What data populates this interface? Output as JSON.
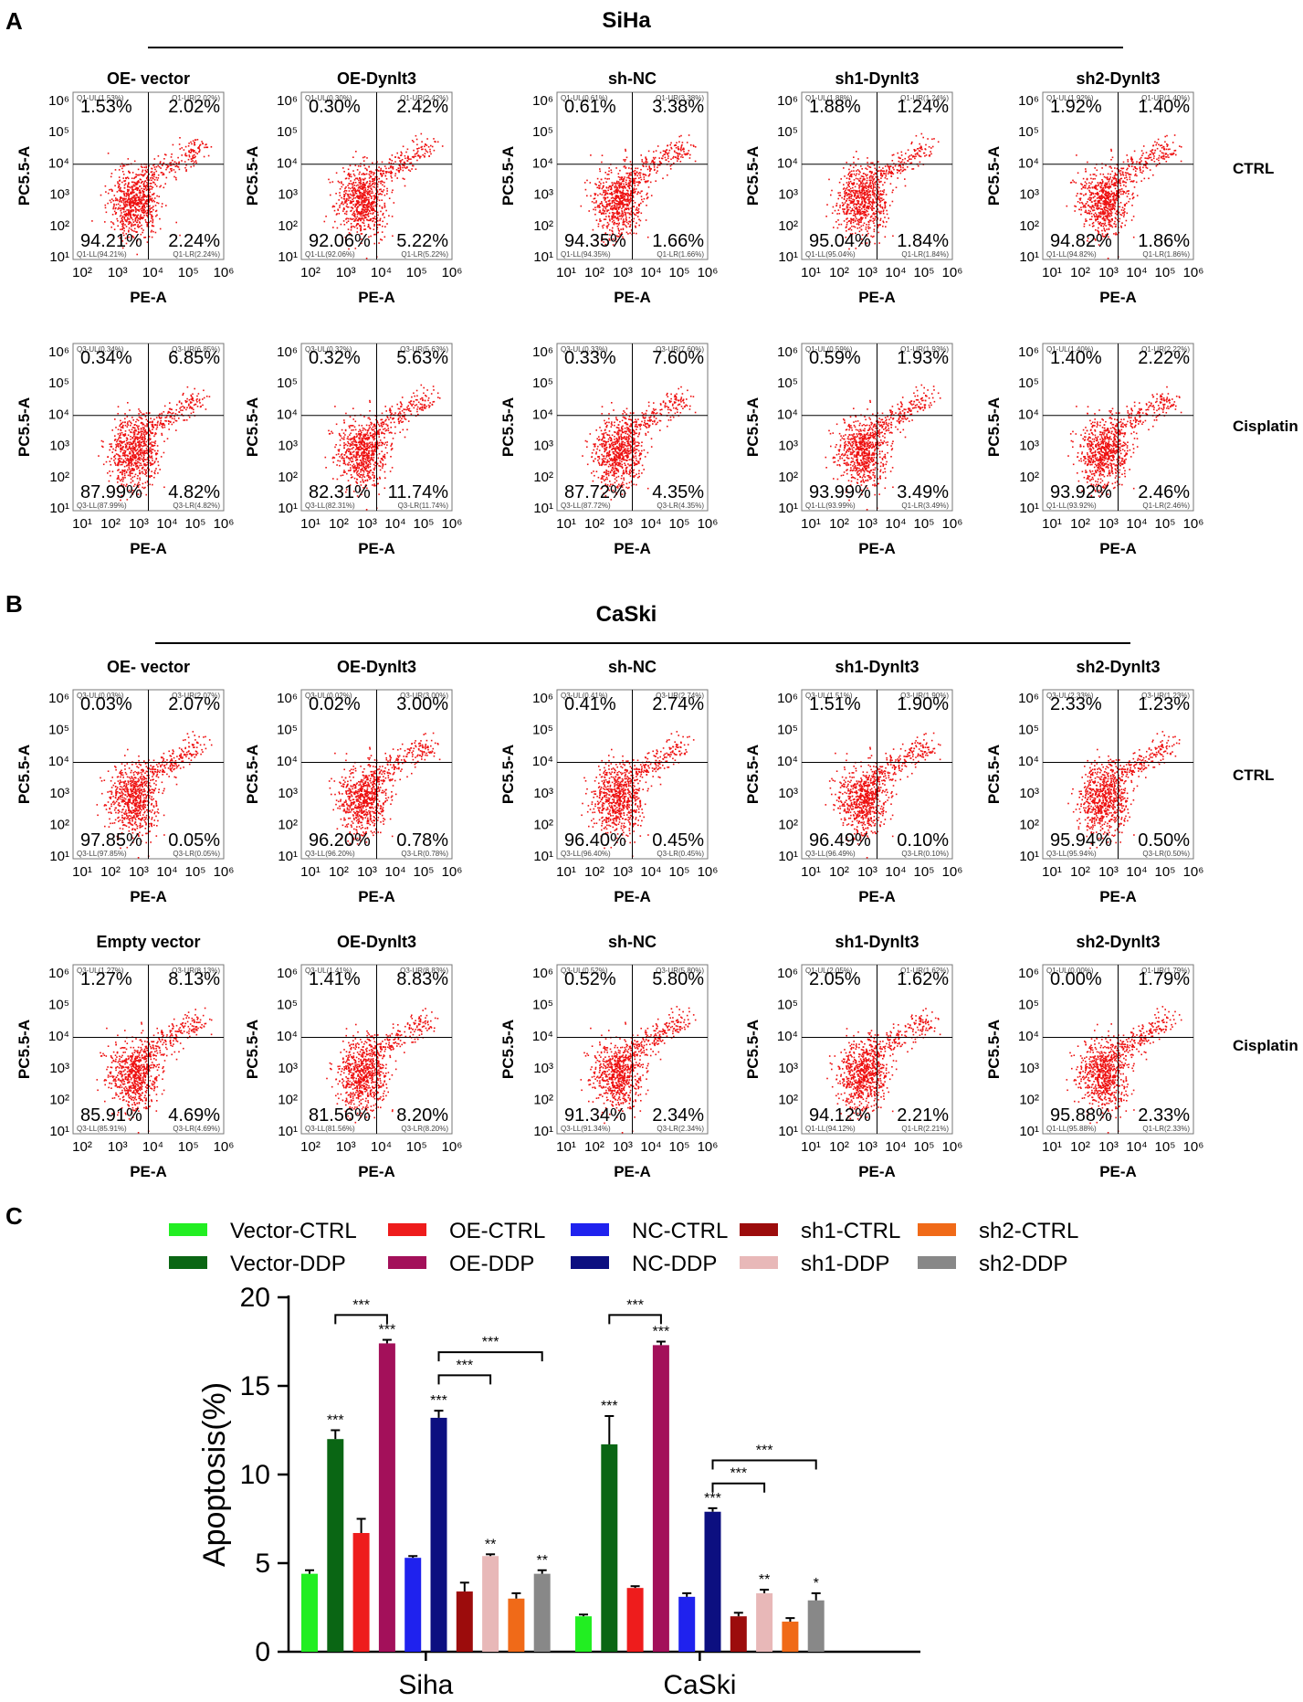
{
  "panel_letters": [
    "A",
    "B",
    "C"
  ],
  "chart_data": [
    {
      "type": "scatter",
      "panel": "A",
      "title": "SiHa",
      "xlabel": "PE-A",
      "ylabel": "PC5.5-A",
      "row_labels": [
        "CTRL",
        "Cisplatin"
      ],
      "columns": [
        "OE- vector",
        "OE-Dynlt3",
        "sh-NC",
        "sh1-Dynlt3",
        "sh2-Dynlt3"
      ],
      "plots": [
        {
          "row": 0,
          "col": 0,
          "title": "OE- vector",
          "UL": "1.53%",
          "UR": "2.02%",
          "LL": "94.21%",
          "LR": "2.24%",
          "gate_ul": "Q1-UL(1.53%)",
          "gate_ur": "Q1-UR(2.02%)",
          "gate_ll": "Q1-LL(94.21%)",
          "gate_lr": "Q1-LR(2.24%)",
          "xticks": [
            "10²",
            "10³",
            "10⁴",
            "10⁵",
            "10⁶"
          ],
          "yticks": [
            "10¹",
            "10²",
            "10³",
            "10⁴",
            "10⁵",
            "10⁶"
          ]
        },
        {
          "row": 0,
          "col": 1,
          "title": "OE-Dynlt3",
          "UL": "0.30%",
          "UR": "2.42%",
          "LL": "92.06%",
          "LR": "5.22%",
          "gate_ul": "Q1-UL(0.30%)",
          "gate_ur": "Q1-UR(2.42%)",
          "gate_ll": "Q1-LL(92.06%)",
          "gate_lr": "Q1-LR(5.22%)",
          "xticks": [
            "10²",
            "10³",
            "10⁴",
            "10⁵",
            "10⁶"
          ],
          "yticks": [
            "10¹",
            "10²",
            "10³",
            "10⁴",
            "10⁵",
            "10⁶"
          ]
        },
        {
          "row": 0,
          "col": 2,
          "title": "sh-NC",
          "UL": "0.61%",
          "UR": "3.38%",
          "LL": "94.35%",
          "LR": "1.66%",
          "gate_ul": "Q1-UL(0.61%)",
          "gate_ur": "Q1-UR(3.38%)",
          "gate_ll": "Q1-LL(94.35%)",
          "gate_lr": "Q1-LR(1.66%)",
          "xticks": [
            "10¹",
            "10²",
            "10³",
            "10⁴",
            "10⁵",
            "10⁶"
          ],
          "yticks": [
            "10¹",
            "10²",
            "10³",
            "10⁴",
            "10⁵",
            "10⁶"
          ]
        },
        {
          "row": 0,
          "col": 3,
          "title": "sh1-Dynlt3",
          "UL": "1.88%",
          "UR": "1.24%",
          "LL": "95.04%",
          "LR": "1.84%",
          "gate_ul": "Q1-UL(1.88%)",
          "gate_ur": "Q1-UR(1.24%)",
          "gate_ll": "Q1-LL(95.04%)",
          "gate_lr": "Q1-LR(1.84%)",
          "xticks": [
            "10¹",
            "10²",
            "10³",
            "10⁴",
            "10⁵",
            "10⁶"
          ],
          "yticks": [
            "10¹",
            "10²",
            "10³",
            "10⁴",
            "10⁵",
            "10⁶"
          ]
        },
        {
          "row": 0,
          "col": 4,
          "title": "sh2-Dynlt3",
          "UL": "1.92%",
          "UR": "1.40%",
          "LL": "94.82%",
          "LR": "1.86%",
          "gate_ul": "Q1-UL(1.92%)",
          "gate_ur": "Q1-UR(1.40%)",
          "gate_ll": "Q1-LL(94.82%)",
          "gate_lr": "Q1-LR(1.86%)",
          "xticks": [
            "10¹",
            "10²",
            "10³",
            "10⁴",
            "10⁵",
            "10⁶"
          ],
          "yticks": [
            "10¹",
            "10²",
            "10³",
            "10⁴",
            "10⁵",
            "10⁶"
          ]
        },
        {
          "row": 1,
          "col": 0,
          "title": "",
          "UL": "0.34%",
          "UR": "6.85%",
          "LL": "87.99%",
          "LR": "4.82%",
          "gate_ul": "Q3-UL(0.34%)",
          "gate_ur": "Q3-UR(6.85%)",
          "gate_ll": "Q3-LL(87.99%)",
          "gate_lr": "Q3-LR(4.82%)",
          "xticks": [
            "10¹",
            "10²",
            "10³",
            "10⁴",
            "10⁵",
            "10⁶"
          ],
          "yticks": [
            "10¹",
            "10²",
            "10³",
            "10⁴",
            "10⁵",
            "10⁶"
          ]
        },
        {
          "row": 1,
          "col": 1,
          "title": "",
          "UL": "0.32%",
          "UR": "5.63%",
          "LL": "82.31%",
          "LR": "11.74%",
          "gate_ul": "Q3-UL(0.32%)",
          "gate_ur": "Q3-UR(5.63%)",
          "gate_ll": "Q3-LL(82.31%)",
          "gate_lr": "Q3-LR(11.74%)",
          "xticks": [
            "10¹",
            "10²",
            "10³",
            "10⁴",
            "10⁵",
            "10⁶"
          ],
          "yticks": [
            "10¹",
            "10²",
            "10³",
            "10⁴",
            "10⁵",
            "10⁶"
          ]
        },
        {
          "row": 1,
          "col": 2,
          "title": "",
          "UL": "0.33%",
          "UR": "7.60%",
          "LL": "87.72%",
          "LR": "4.35%",
          "gate_ul": "Q3-UL(0.33%)",
          "gate_ur": "Q3-UR(7.60%)",
          "gate_ll": "Q3-LL(87.72%)",
          "gate_lr": "Q3-LR(4.35%)",
          "xticks": [
            "10¹",
            "10²",
            "10³",
            "10⁴",
            "10⁵",
            "10⁶"
          ],
          "yticks": [
            "10¹",
            "10²",
            "10³",
            "10⁴",
            "10⁵",
            "10⁶"
          ]
        },
        {
          "row": 1,
          "col": 3,
          "title": "",
          "UL": "0.59%",
          "UR": "1.93%",
          "LL": "93.99%",
          "LR": "3.49%",
          "gate_ul": "Q1-UL(0.59%)",
          "gate_ur": "Q1-UR(1.93%)",
          "gate_ll": "Q1-LL(93.99%)",
          "gate_lr": "Q1-LR(3.49%)",
          "xticks": [
            "10¹",
            "10²",
            "10³",
            "10⁴",
            "10⁵",
            "10⁶"
          ],
          "yticks": [
            "10¹",
            "10²",
            "10³",
            "10⁴",
            "10⁵",
            "10⁶"
          ]
        },
        {
          "row": 1,
          "col": 4,
          "title": "",
          "UL": "1.40%",
          "UR": "2.22%",
          "LL": "93.92%",
          "LR": "2.46%",
          "gate_ul": "Q1-UL(1.40%)",
          "gate_ur": "Q1-UR(2.22%)",
          "gate_ll": "Q1-LL(93.92%)",
          "gate_lr": "Q1-LR(2.46%)",
          "xticks": [
            "10¹",
            "10²",
            "10³",
            "10⁴",
            "10⁵",
            "10⁶"
          ],
          "yticks": [
            "10¹",
            "10²",
            "10³",
            "10⁴",
            "10⁵",
            "10⁶"
          ]
        }
      ]
    },
    {
      "type": "scatter",
      "panel": "B",
      "title": "CaSki",
      "xlabel": "PE-A",
      "ylabel": "PC5.5-A",
      "row_labels": [
        "CTRL",
        "Cisplatin"
      ],
      "columns": [
        "OE- vector",
        "OE-Dynlt3",
        "sh-NC",
        "sh1-Dynlt3",
        "sh2-Dynlt3"
      ],
      "plots": [
        {
          "row": 0,
          "col": 0,
          "title": "OE- vector",
          "UL": "0.03%",
          "UR": "2.07%",
          "LL": "97.85%",
          "LR": "0.05%",
          "gate_ul": "Q3-UL(0.03%)",
          "gate_ur": "Q3-UR(2.07%)",
          "gate_ll": "Q3-LL(97.85%)",
          "gate_lr": "Q3-LR(0.05%)",
          "xticks": [
            "10¹",
            "10²",
            "10³",
            "10⁴",
            "10⁵",
            "10⁶"
          ],
          "yticks": [
            "10¹",
            "10²",
            "10³",
            "10⁴",
            "10⁵",
            "10⁶"
          ]
        },
        {
          "row": 0,
          "col": 1,
          "title": "OE-Dynlt3",
          "UL": "0.02%",
          "UR": "3.00%",
          "LL": "96.20%",
          "LR": "0.78%",
          "gate_ul": "Q3-UL(0.02%)",
          "gate_ur": "Q3-UR(3.00%)",
          "gate_ll": "Q3-LL(96.20%)",
          "gate_lr": "Q3-LR(0.78%)",
          "xticks": [
            "10¹",
            "10²",
            "10³",
            "10⁴",
            "10⁵",
            "10⁶"
          ],
          "yticks": [
            "10¹",
            "10²",
            "10³",
            "10⁴",
            "10⁵",
            "10⁶"
          ]
        },
        {
          "row": 0,
          "col": 2,
          "title": "sh-NC",
          "UL": "0.41%",
          "UR": "2.74%",
          "LL": "96.40%",
          "LR": "0.45%",
          "gate_ul": "Q3-UL(0.41%)",
          "gate_ur": "Q3-UR(2.74%)",
          "gate_ll": "Q3-LL(96.40%)",
          "gate_lr": "Q3-LR(0.45%)",
          "xticks": [
            "10¹",
            "10²",
            "10³",
            "10⁴",
            "10⁵",
            "10⁶"
          ],
          "yticks": [
            "10¹",
            "10²",
            "10³",
            "10⁴",
            "10⁵",
            "10⁶"
          ]
        },
        {
          "row": 0,
          "col": 3,
          "title": "sh1-Dynlt3",
          "UL": "1.51%",
          "UR": "1.90%",
          "LL": "96.49%",
          "LR": "0.10%",
          "gate_ul": "Q3-UL(1.51%)",
          "gate_ur": "Q3-UR(1.90%)",
          "gate_ll": "Q3-LL(96.49%)",
          "gate_lr": "Q3-LR(0.10%)",
          "xticks": [
            "10¹",
            "10²",
            "10³",
            "10⁴",
            "10⁵",
            "10⁶"
          ],
          "yticks": [
            "10¹",
            "10²",
            "10³",
            "10⁴",
            "10⁵",
            "10⁶"
          ]
        },
        {
          "row": 0,
          "col": 4,
          "title": "sh2-Dynlt3",
          "UL": "2.33%",
          "UR": "1.23%",
          "LL": "95.94%",
          "LR": "0.50%",
          "gate_ul": "Q3-UL(2.33%)",
          "gate_ur": "Q3-UR(1.23%)",
          "gate_ll": "Q3-LL(95.94%)",
          "gate_lr": "Q3-LR(0.50%)",
          "xticks": [
            "10¹",
            "10²",
            "10³",
            "10⁴",
            "10⁵",
            "10⁶"
          ],
          "yticks": [
            "10¹",
            "10²",
            "10³",
            "10⁴",
            "10⁵",
            "10⁶"
          ]
        },
        {
          "row": 1,
          "col": 0,
          "title": "Empty vector",
          "UL": "1.27%",
          "UR": "8.13%",
          "LL": "85.91%",
          "LR": "4.69%",
          "gate_ul": "Q3-UL(1.27%)",
          "gate_ur": "Q3-UR(8.13%)",
          "gate_ll": "Q3-LL(85.91%)",
          "gate_lr": "Q3-LR(4.69%)",
          "xticks": [
            "10²",
            "10³",
            "10⁴",
            "10⁵",
            "10⁶"
          ],
          "yticks": [
            "10¹",
            "10²",
            "10³",
            "10⁴",
            "10⁵",
            "10⁶"
          ]
        },
        {
          "row": 1,
          "col": 1,
          "title": "OE-Dynlt3",
          "UL": "1.41%",
          "UR": "8.83%",
          "LL": "81.56%",
          "LR": "8.20%",
          "gate_ul": "Q3-UL(1.41%)",
          "gate_ur": "Q3-UR(8.83%)",
          "gate_ll": "Q3-LL(81.56%)",
          "gate_lr": "Q3-LR(8.20%)",
          "xticks": [
            "10²",
            "10³",
            "10⁴",
            "10⁵",
            "10⁶"
          ],
          "yticks": [
            "10¹",
            "10²",
            "10³",
            "10⁴",
            "10⁵",
            "10⁶"
          ]
        },
        {
          "row": 1,
          "col": 2,
          "title": "sh-NC",
          "UL": "0.52%",
          "UR": "5.80%",
          "LL": "91.34%",
          "LR": "2.34%",
          "gate_ul": "Q3-UL(0.52%)",
          "gate_ur": "Q3-UR(5.80%)",
          "gate_ll": "Q3-LL(91.34%)",
          "gate_lr": "Q3-LR(2.34%)",
          "xticks": [
            "10¹",
            "10²",
            "10³",
            "10⁴",
            "10⁵",
            "10⁶"
          ],
          "yticks": [
            "10¹",
            "10²",
            "10³",
            "10⁴",
            "10⁵",
            "10⁶"
          ]
        },
        {
          "row": 1,
          "col": 3,
          "title": "sh1-Dynlt3",
          "UL": "2.05%",
          "UR": "1.62%",
          "LL": "94.12%",
          "LR": "2.21%",
          "gate_ul": "Q1-UL(2.05%)",
          "gate_ur": "Q1-UR(1.62%)",
          "gate_ll": "Q1-LL(94.12%)",
          "gate_lr": "Q1-LR(2.21%)",
          "xticks": [
            "10¹",
            "10²",
            "10³",
            "10⁴",
            "10⁵",
            "10⁶"
          ],
          "yticks": [
            "10¹",
            "10²",
            "10³",
            "10⁴",
            "10⁵",
            "10⁶"
          ]
        },
        {
          "row": 1,
          "col": 4,
          "title": "sh2-Dynlt3",
          "UL": "0.00%",
          "UR": "1.79%",
          "LL": "95.88%",
          "LR": "2.33%",
          "gate_ul": "Q1-UL(0.00%)",
          "gate_ur": "Q1-UR(1.79%)",
          "gate_ll": "Q1-LL(95.88%)",
          "gate_lr": "Q1-LR(2.33%)",
          "xticks": [
            "10¹",
            "10²",
            "10³",
            "10⁴",
            "10⁵",
            "10⁶"
          ],
          "yticks": [
            "10¹",
            "10²",
            "10³",
            "10⁴",
            "10⁵",
            "10⁶"
          ]
        }
      ]
    },
    {
      "type": "bar",
      "panel": "C",
      "title": "",
      "xlabel": "",
      "ylabel": "Apoptosis(%)",
      "ylim": [
        0,
        20
      ],
      "yticks": [
        0,
        5,
        10,
        15,
        20
      ],
      "categories": [
        "Siha",
        "CaSki"
      ],
      "series": [
        {
          "name": "Vector-CTRL",
          "color": "#22ee22",
          "values": [
            4.4,
            2.0
          ],
          "errors": [
            0.2,
            0.1
          ],
          "sig": [
            "",
            ""
          ]
        },
        {
          "name": "Vector-DDP",
          "color": "#0a6614",
          "values": [
            12.0,
            11.7
          ],
          "errors": [
            0.5,
            1.6
          ],
          "sig": [
            "***",
            "***"
          ]
        },
        {
          "name": "OE-CTRL",
          "color": "#ee1c1c",
          "values": [
            6.7,
            3.6
          ],
          "errors": [
            0.8,
            0.1
          ],
          "sig": [
            "",
            ""
          ]
        },
        {
          "name": "OE-DDP",
          "color": "#a3105a",
          "values": [
            17.4,
            17.3
          ],
          "errors": [
            0.2,
            0.2
          ],
          "sig": [
            "***",
            "***"
          ]
        },
        {
          "name": "NC-CTRL",
          "color": "#1f22ee",
          "values": [
            5.3,
            3.1
          ],
          "errors": [
            0.1,
            0.2
          ],
          "sig": [
            "",
            ""
          ]
        },
        {
          "name": "NC-DDP",
          "color": "#0c0f80",
          "values": [
            13.2,
            7.9
          ],
          "errors": [
            0.4,
            0.2
          ],
          "sig": [
            "***",
            "***"
          ]
        },
        {
          "name": "sh1-CTRL",
          "color": "#9c0c0c",
          "values": [
            3.4,
            2.0
          ],
          "errors": [
            0.5,
            0.2
          ],
          "sig": [
            "",
            ""
          ]
        },
        {
          "name": "sh1-DDP",
          "color": "#e8b8b8",
          "values": [
            5.4,
            3.3
          ],
          "errors": [
            0.1,
            0.2
          ],
          "sig": [
            "**",
            "**"
          ]
        },
        {
          "name": "sh2-CTRL",
          "color": "#f06a18",
          "values": [
            3.0,
            1.7
          ],
          "errors": [
            0.3,
            0.2
          ],
          "sig": [
            "",
            ""
          ]
        },
        {
          "name": "sh2-DDP",
          "color": "#888888",
          "values": [
            4.4,
            2.9
          ],
          "errors": [
            0.2,
            0.4
          ],
          "sig": [
            "**",
            "*"
          ]
        }
      ],
      "brackets": [
        {
          "group": 0,
          "from": 1,
          "to": 3,
          "label": "***"
        },
        {
          "group": 0,
          "from": 5,
          "to": 7,
          "label": "***"
        },
        {
          "group": 0,
          "from": 5,
          "to": 9,
          "label": "***"
        },
        {
          "group": 1,
          "from": 1,
          "to": 3,
          "label": "***"
        },
        {
          "group": 1,
          "from": 5,
          "to": 7,
          "label": "***"
        },
        {
          "group": 1,
          "from": 5,
          "to": 9,
          "label": "***"
        }
      ]
    }
  ]
}
